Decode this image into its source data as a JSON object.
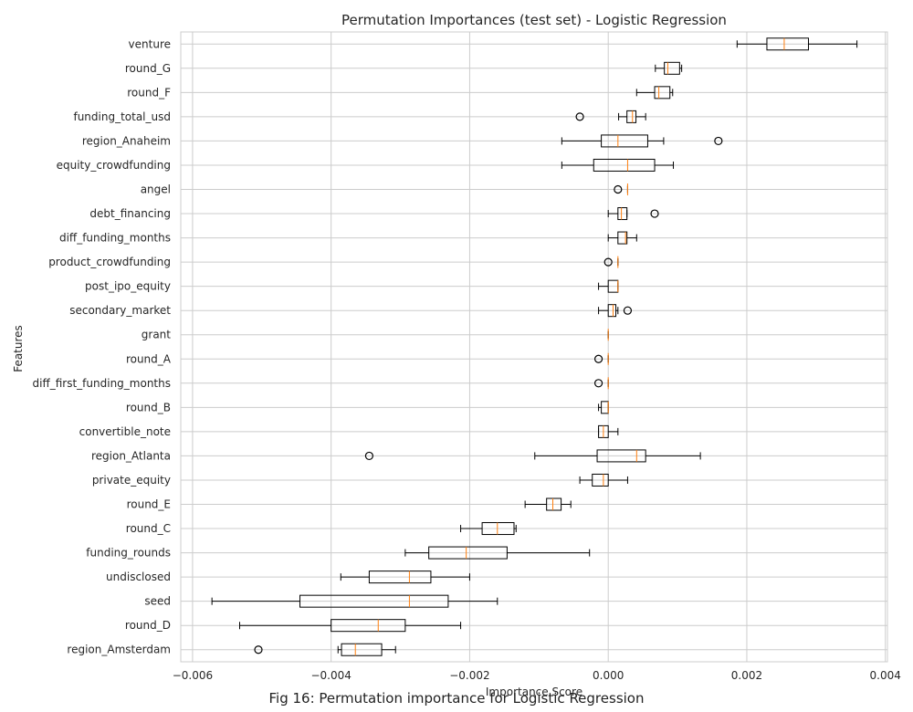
{
  "chart_data": {
    "type": "boxplot",
    "orientation": "horizontal",
    "title": "Permutation Importances (test set) - Logistic Regression",
    "xlabel": "Importance Score",
    "ylabel": "Features",
    "xlim": [
      -0.00617,
      0.00403
    ],
    "xticks": [
      -0.006,
      -0.004,
      -0.002,
      0.0,
      0.002,
      0.004
    ],
    "xtick_labels": [
      "−0.006",
      "−0.004",
      "−0.002",
      "0.000",
      "0.002",
      "0.004"
    ],
    "grid": true,
    "colors": {
      "box": "#000000",
      "median": "#ff7f0e",
      "grid": "#cccccc",
      "frame": "#cccccc"
    },
    "features": [
      {
        "name": "venture",
        "whislo": 0.00186,
        "q1": 0.00229,
        "med": 0.00254,
        "q3": 0.00289,
        "whishi": 0.00359,
        "fliers": []
      },
      {
        "name": "round_G",
        "whislo": 0.00068,
        "q1": 0.00081,
        "med": 0.00086,
        "q3": 0.00103,
        "whishi": 0.00106,
        "fliers": []
      },
      {
        "name": "round_F",
        "whislo": 0.00041,
        "q1": 0.00067,
        "med": 0.00073,
        "q3": 0.00089,
        "whishi": 0.00093,
        "fliers": []
      },
      {
        "name": "funding_total_usd",
        "whislo": 0.00015,
        "q1": 0.00027,
        "med": 0.00035,
        "q3": 0.0004,
        "whishi": 0.00054,
        "fliers": [
          -0.00041
        ]
      },
      {
        "name": "region_Anaheim",
        "whislo": -0.00067,
        "q1": -0.0001,
        "med": 0.00014,
        "q3": 0.00057,
        "whishi": 0.0008,
        "fliers": [
          0.00159
        ]
      },
      {
        "name": "equity_crowdfunding",
        "whislo": -0.00067,
        "q1": -0.00021,
        "med": 0.00028,
        "q3": 0.00067,
        "whishi": 0.00094,
        "fliers": []
      },
      {
        "name": "angel",
        "whislo": 0.00028,
        "q1": 0.00028,
        "med": 0.00028,
        "q3": 0.00028,
        "whishi": 0.00028,
        "fliers": [
          0.00014
        ]
      },
      {
        "name": "debt_financing",
        "whislo": 0.0,
        "q1": 0.00014,
        "med": 0.00019,
        "q3": 0.00027,
        "whishi": 0.00027,
        "fliers": [
          0.00067
        ]
      },
      {
        "name": "diff_funding_months",
        "whislo": 0.0,
        "q1": 0.00014,
        "med": 0.00025,
        "q3": 0.00027,
        "whishi": 0.00041,
        "fliers": []
      },
      {
        "name": "product_crowdfunding",
        "whislo": 0.00014,
        "q1": 0.00014,
        "med": 0.00014,
        "q3": 0.00014,
        "whishi": 0.00014,
        "fliers": [
          0.0
        ]
      },
      {
        "name": "post_ipo_equity",
        "whislo": -0.00014,
        "q1": 0.0,
        "med": 0.00014,
        "q3": 0.00014,
        "whishi": 0.00014,
        "fliers": []
      },
      {
        "name": "secondary_market",
        "whislo": -0.00014,
        "q1": 0.0,
        "med": 7e-05,
        "q3": 0.00011,
        "whishi": 0.00014,
        "fliers": [
          0.00028
        ]
      },
      {
        "name": "grant",
        "whislo": 0.0,
        "q1": 0.0,
        "med": 0.0,
        "q3": 0.0,
        "whishi": 0.0,
        "fliers": []
      },
      {
        "name": "round_A",
        "whislo": 0.0,
        "q1": 0.0,
        "med": 0.0,
        "q3": 0.0,
        "whishi": 0.0,
        "fliers": [
          -0.00014
        ]
      },
      {
        "name": "diff_first_funding_months",
        "whislo": 0.0,
        "q1": 0.0,
        "med": 0.0,
        "q3": 0.0,
        "whishi": 0.0,
        "fliers": [
          -0.00014
        ]
      },
      {
        "name": "round_B",
        "whislo": -0.00014,
        "q1": -0.0001,
        "med": 0.0,
        "q3": 0.0,
        "whishi": 0.0,
        "fliers": []
      },
      {
        "name": "convertible_note",
        "whislo": -0.00014,
        "q1": -0.00014,
        "med": -7e-05,
        "q3": 0.0,
        "whishi": 0.00014,
        "fliers": []
      },
      {
        "name": "region_Atlanta",
        "whislo": -0.00106,
        "q1": -0.00016,
        "med": 0.00041,
        "q3": 0.00054,
        "whishi": 0.00133,
        "fliers": [
          -0.00345
        ]
      },
      {
        "name": "private_equity",
        "whislo": -0.00041,
        "q1": -0.00023,
        "med": -7e-05,
        "q3": 0.0,
        "whishi": 0.00028,
        "fliers": []
      },
      {
        "name": "round_E",
        "whislo": -0.0012,
        "q1": -0.00089,
        "med": -0.0008,
        "q3": -0.00068,
        "whishi": -0.00054,
        "fliers": []
      },
      {
        "name": "round_C",
        "whislo": -0.00213,
        "q1": -0.00182,
        "med": -0.0016,
        "q3": -0.00136,
        "whishi": -0.00133,
        "fliers": []
      },
      {
        "name": "funding_rounds",
        "whislo": -0.00293,
        "q1": -0.00259,
        "med": -0.00205,
        "q3": -0.00146,
        "whishi": -0.00027,
        "fliers": []
      },
      {
        "name": "undisclosed",
        "whislo": -0.00386,
        "q1": -0.00345,
        "med": -0.00287,
        "q3": -0.00256,
        "whishi": -0.002,
        "fliers": []
      },
      {
        "name": "seed",
        "whislo": -0.00572,
        "q1": -0.00445,
        "med": -0.00287,
        "q3": -0.00231,
        "whishi": -0.0016,
        "fliers": []
      },
      {
        "name": "round_D",
        "whislo": -0.00532,
        "q1": -0.004,
        "med": -0.00332,
        "q3": -0.00293,
        "whishi": -0.00213,
        "fliers": []
      },
      {
        "name": "region_Amsterdam",
        "whislo": -0.0039,
        "q1": -0.00385,
        "med": -0.00365,
        "q3": -0.00327,
        "whishi": -0.00307,
        "fliers": [
          -0.00505
        ]
      }
    ]
  },
  "caption": "Fig 16: Permutation importance for Logistic Regression"
}
